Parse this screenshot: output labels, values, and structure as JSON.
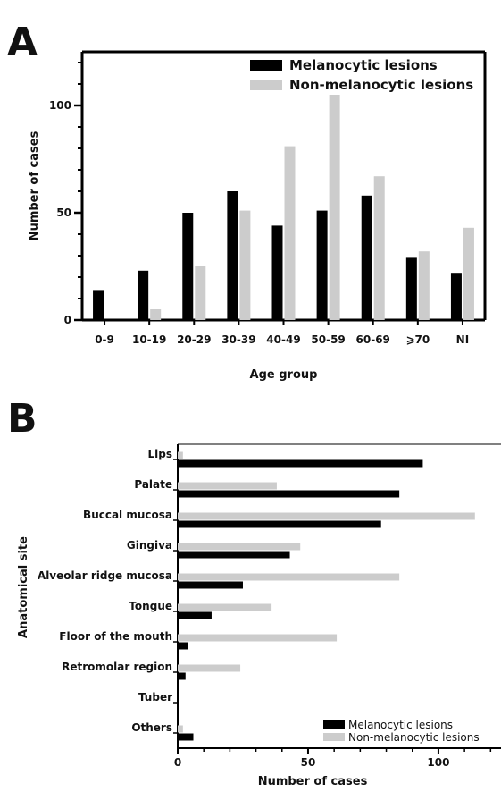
{
  "chart_data": [
    {
      "panel": "A",
      "type": "bar",
      "orientation": "vertical",
      "categories": [
        "0-9",
        "10-19",
        "20-29",
        "30-39",
        "40-49",
        "50-59",
        "60-69",
        "⩾70",
        "NI"
      ],
      "series": [
        {
          "name": "Melanocytic lesions",
          "color": "#000000",
          "values": [
            14,
            23,
            50,
            60,
            44,
            51,
            58,
            29,
            22
          ]
        },
        {
          "name": "Non-melanocytic lesions",
          "color": "#cccccc",
          "values": [
            0,
            5,
            25,
            51,
            81,
            105,
            67,
            32,
            43
          ]
        }
      ],
      "xlabel": "Age group",
      "ylabel": "Number of cases",
      "yticks": [
        0,
        50,
        100
      ],
      "ylim": [
        0,
        125
      ],
      "grid": false,
      "legend": "top-right"
    },
    {
      "panel": "B",
      "type": "bar",
      "orientation": "horizontal",
      "categories": [
        "Lips",
        "Palate",
        "Buccal mucosa",
        "Gingiva",
        "Alveolar ridge mucosa",
        "Tongue",
        "Floor of the mouth",
        "Retromolar region",
        "Tuber",
        "Others"
      ],
      "series": [
        {
          "name": "Melanocytic lesions",
          "color": "#000000",
          "values": [
            94,
            85,
            78,
            43,
            25,
            13,
            4,
            3,
            0,
            6
          ]
        },
        {
          "name": "Non-melanocytic lesions",
          "color": "#cccccc",
          "values": [
            2,
            38,
            114,
            47,
            85,
            36,
            61,
            24,
            0,
            2
          ]
        }
      ],
      "xlabel": "Number of cases",
      "ylabel": "Anatomical site",
      "xticks": [
        0,
        50,
        100
      ],
      "xlim": [
        0,
        124
      ],
      "grid": false,
      "legend": "bottom-right"
    }
  ]
}
